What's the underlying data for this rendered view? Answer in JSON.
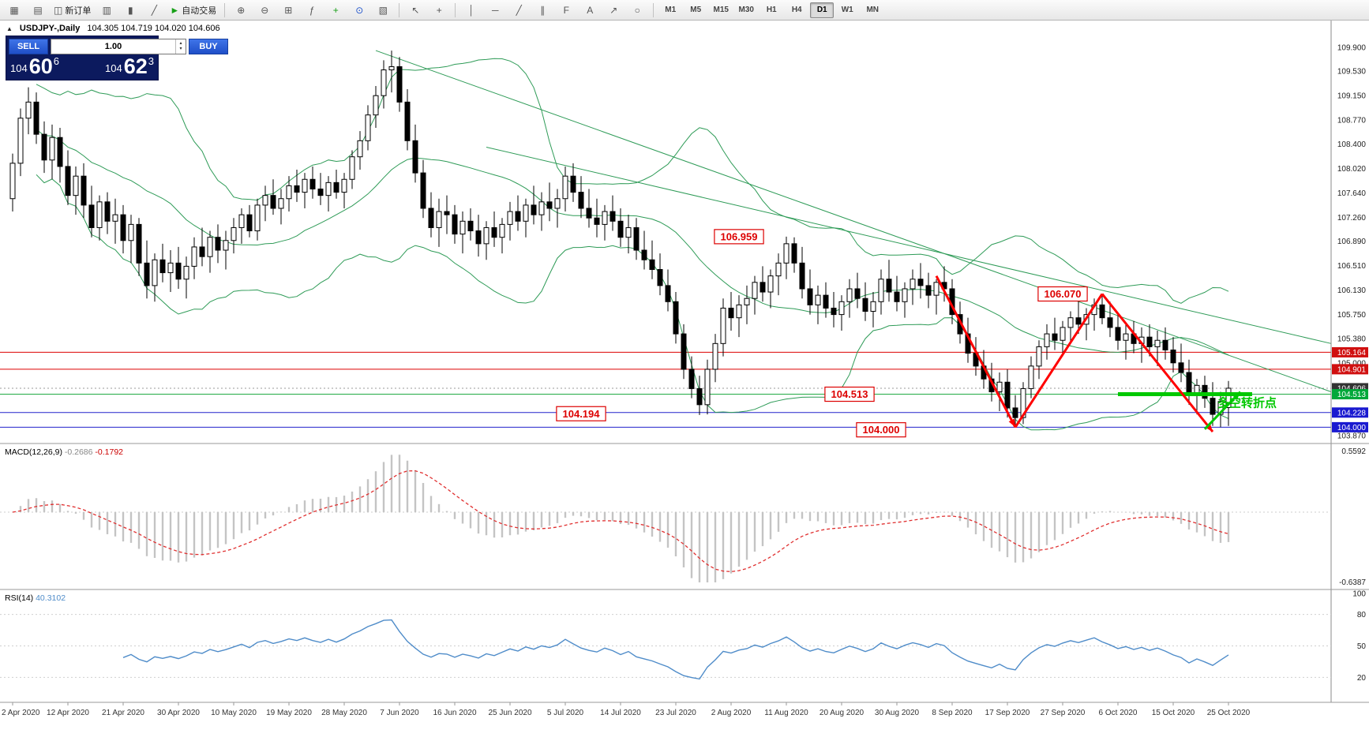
{
  "colors": {
    "band_green": "#2e9b57",
    "trend_green": "#2e9b57",
    "hline_red": "#dd0000",
    "hline_blue": "#2222cc",
    "hline_green": "#22aa44",
    "bid_line_gray": "#999999",
    "support_green": "#00c800",
    "zigzag_red": "#ff0000",
    "arrow_green": "#00c800",
    "pivot_green": "#00c800",
    "macd_hist": "#c4c4c4",
    "macd_signal": "#e03030",
    "rsi_line": "#4f8cc9",
    "badge_red": "#d01010",
    "badge_green": "#00a83a",
    "badge_blue": "#1a1ad0",
    "badge_dark": "#333333"
  },
  "toolbar": {
    "groups": [
      {
        "items": [
          {
            "name": "new-chart-icon",
            "glyph": "▦"
          },
          {
            "name": "profiles-icon",
            "glyph": "▤"
          },
          {
            "name": "new-order-button",
            "glyph": "◫",
            "label": "新订单"
          },
          {
            "name": "chart-bars-icon",
            "glyph": "▥"
          },
          {
            "name": "chart-candles-icon",
            "glyph": "▮"
          },
          {
            "name": "chart-line-icon",
            "glyph": "╱"
          },
          {
            "name": "autotrading-button",
            "glyph": "►",
            "glyph_color": "#18a018",
            "label": "自动交易"
          }
        ]
      },
      {
        "items": [
          {
            "name": "zoom-in-icon",
            "glyph": "⊕"
          },
          {
            "name": "zoom-out-icon",
            "glyph": "⊖"
          },
          {
            "name": "tile-windows-icon",
            "glyph": "⊞"
          },
          {
            "name": "indicators-icon",
            "glyph": "ƒ"
          },
          {
            "name": "add-indicator-icon",
            "glyph": "+",
            "glyph_color": "#18a018"
          },
          {
            "name": "period-icon",
            "glyph": "⊙",
            "glyph_color": "#2255cc"
          },
          {
            "name": "templates-icon",
            "glyph": "▧"
          }
        ]
      },
      {
        "items": [
          {
            "name": "cursor-icon",
            "glyph": "↖"
          },
          {
            "name": "crosshair-icon",
            "glyph": "+"
          }
        ]
      },
      {
        "items": [
          {
            "name": "vertical-line-icon",
            "glyph": "│"
          },
          {
            "name": "horizontal-line-icon",
            "glyph": "─"
          },
          {
            "name": "trendline-icon",
            "glyph": "╱"
          },
          {
            "name": "channel-icon",
            "glyph": "∥"
          },
          {
            "name": "fibonacci-icon",
            "glyph": "F"
          },
          {
            "name": "text-icon",
            "glyph": "A"
          },
          {
            "name": "arrow-label-icon",
            "glyph": "↗"
          },
          {
            "name": "shapes-icon",
            "glyph": "○"
          }
        ]
      }
    ],
    "timeframes": {
      "labels": [
        "M1",
        "M5",
        "M15",
        "M30",
        "H1",
        "H4",
        "D1",
        "W1",
        "MN"
      ],
      "active": "D1"
    }
  },
  "chart": {
    "collapse_icon": "▲",
    "symbol_period": "USDJPY-,Daily",
    "ohlc": "104.305 104.719 104.020 104.606"
  },
  "trade_panel": {
    "sell_label": "SELL",
    "buy_label": "BUY",
    "volume": "1.00",
    "bid": {
      "head": "104",
      "pips": "60",
      "frac": "6"
    },
    "ask": {
      "head": "104",
      "pips": "62",
      "frac": "3"
    }
  },
  "macd": {
    "name": "MACD(12,26,9)",
    "value_main": "-0.2686",
    "value_signal": "-0.1792",
    "scale_max": "0.5592",
    "scale_min": "-0.6387",
    "params": {
      "fast": 12,
      "slow": 26,
      "signal": 9
    }
  },
  "rsi": {
    "name": "RSI(14)",
    "value": "40.3102",
    "period": 14,
    "scale_labels": [
      "100",
      "80",
      "50",
      "20"
    ],
    "levels": [
      80,
      50,
      20
    ]
  },
  "chart_data": {
    "type": "candlestick",
    "symbol": "USDJPY-",
    "timeframe": "Daily",
    "price_axis": {
      "top_price": 109.9,
      "bottom_price": 103.87,
      "ticks": [
        "109.900",
        "109.530",
        "109.150",
        "108.770",
        "108.400",
        "108.020",
        "107.640",
        "107.260",
        "106.890",
        "106.510",
        "106.130",
        "105.750",
        "105.380",
        "105.000",
        "103.870"
      ]
    },
    "badges": [
      {
        "text": "105.164",
        "price": 105.164,
        "bg": "badge_red"
      },
      {
        "text": "104.901",
        "price": 104.901,
        "bg": "badge_red"
      },
      {
        "text": "104.606",
        "price": 104.606,
        "bg": "badge_dark"
      },
      {
        "text": "104.513",
        "price": 104.513,
        "bg": "badge_green"
      },
      {
        "text": "104.228",
        "price": 104.228,
        "bg": "badge_blue"
      },
      {
        "text": "104.000",
        "price": 104.0,
        "bg": "badge_blue"
      }
    ],
    "hlines": [
      {
        "price": 105.164,
        "color": "hline_red",
        "dash": null
      },
      {
        "price": 104.901,
        "color": "hline_red",
        "dash": null
      },
      {
        "price": 104.606,
        "color": "bid_line_gray",
        "dash": "2,3"
      },
      {
        "price": 104.513,
        "color": "hline_green",
        "dash": null
      },
      {
        "price": 104.228,
        "color": "hline_blue",
        "dash": null
      },
      {
        "price": 104.0,
        "color": "hline_blue",
        "dash": null
      }
    ],
    "trendlines": [
      {
        "from": [
          46,
          109.85
        ],
        "to": [
          167,
          104.55
        ]
      },
      {
        "from": [
          60,
          108.35
        ],
        "to": [
          167,
          105.3
        ]
      }
    ],
    "zigzag": {
      "points": [
        [
          117,
          106.35
        ],
        [
          127,
          104.0
        ],
        [
          138,
          106.07
        ],
        [
          152,
          103.93
        ]
      ],
      "arrow_segments": [
        0,
        2
      ]
    },
    "support_segment": {
      "price": 104.513,
      "from_idx": 140,
      "to_idx": 157
    },
    "up_arrow": {
      "from": [
        151,
        103.97
      ],
      "to": [
        155.5,
        104.55
      ]
    },
    "pivot_label": {
      "text": "多空转折点",
      "idx": 151,
      "price": 104.32
    },
    "annotations": [
      {
        "text": "106.959",
        "idx": 92,
        "price": 106.96
      },
      {
        "text": "106.070",
        "idx": 133,
        "price": 106.07
      },
      {
        "text": "104.513",
        "idx": 106,
        "price": 104.513
      },
      {
        "text": "104.194",
        "idx": 72,
        "price": 104.21
      },
      {
        "text": "104.000",
        "idx": 110,
        "price": 103.96
      }
    ],
    "indicators": {
      "bollinger": {
        "period": 20,
        "deviation": 2
      }
    },
    "date_labels": [
      "2 Apr 2020",
      "12 Apr 2020",
      "21 Apr 2020",
      "30 Apr 2020",
      "10 May 2020",
      "19 May 2020",
      "28 May 2020",
      "7 Jun 2020",
      "16 Jun 2020",
      "25 Jun 2020",
      "5 Jul 2020",
      "14 Jul 2020",
      "23 Jul 2020",
      "2 Aug 2020",
      "11 Aug 2020",
      "20 Aug 2020",
      "30 Aug 2020",
      "8 Sep 2020",
      "17 Sep 2020",
      "27 Sep 2020",
      "6 Oct 2020",
      "15 Oct 2020",
      "25 Oct 2020"
    ],
    "candles": [
      [
        107.55,
        108.25,
        107.35,
        108.1
      ],
      [
        108.1,
        108.95,
        107.9,
        108.8
      ],
      [
        108.8,
        109.28,
        108.55,
        109.05
      ],
      [
        109.05,
        109.2,
        108.4,
        108.55
      ],
      [
        108.55,
        108.75,
        107.95,
        108.15
      ],
      [
        108.15,
        108.7,
        107.85,
        108.5
      ],
      [
        108.5,
        108.65,
        107.8,
        108.05
      ],
      [
        108.05,
        108.3,
        107.45,
        107.6
      ],
      [
        107.6,
        108.05,
        107.3,
        107.9
      ],
      [
        107.9,
        108.1,
        107.25,
        107.45
      ],
      [
        107.45,
        107.75,
        106.95,
        107.1
      ],
      [
        107.1,
        107.6,
        106.9,
        107.5
      ],
      [
        107.5,
        107.65,
        107.0,
        107.2
      ],
      [
        107.2,
        107.55,
        106.85,
        107.3
      ],
      [
        107.3,
        107.45,
        106.7,
        106.9
      ],
      [
        106.9,
        107.3,
        106.55,
        107.15
      ],
      [
        107.15,
        107.25,
        106.35,
        106.55
      ],
      [
        106.55,
        106.9,
        106.0,
        106.2
      ],
      [
        106.2,
        106.7,
        105.95,
        106.6
      ],
      [
        106.6,
        106.85,
        106.25,
        106.4
      ],
      [
        106.4,
        106.75,
        106.1,
        106.55
      ],
      [
        106.55,
        106.8,
        106.15,
        106.3
      ],
      [
        106.3,
        106.65,
        106.0,
        106.5
      ],
      [
        106.5,
        106.95,
        106.3,
        106.8
      ],
      [
        106.8,
        107.1,
        106.5,
        106.65
      ],
      [
        106.65,
        107.05,
        106.4,
        106.95
      ],
      [
        106.95,
        107.15,
        106.55,
        106.75
      ],
      [
        106.75,
        107.05,
        106.45,
        106.9
      ],
      [
        106.9,
        107.25,
        106.7,
        107.1
      ],
      [
        107.1,
        107.4,
        106.85,
        107.3
      ],
      [
        107.3,
        107.45,
        106.95,
        107.05
      ],
      [
        107.05,
        107.55,
        106.9,
        107.45
      ],
      [
        107.45,
        107.75,
        107.2,
        107.6
      ],
      [
        107.6,
        107.85,
        107.3,
        107.4
      ],
      [
        107.4,
        107.7,
        107.15,
        107.55
      ],
      [
        107.55,
        107.9,
        107.35,
        107.75
      ],
      [
        107.75,
        108.0,
        107.5,
        107.65
      ],
      [
        107.65,
        107.95,
        107.4,
        107.85
      ],
      [
        107.85,
        108.05,
        107.55,
        107.7
      ],
      [
        107.7,
        107.95,
        107.45,
        107.6
      ],
      [
        107.6,
        107.9,
        107.35,
        107.8
      ],
      [
        107.8,
        108.0,
        107.55,
        107.65
      ],
      [
        107.65,
        107.95,
        107.4,
        107.85
      ],
      [
        107.85,
        108.3,
        107.7,
        108.2
      ],
      [
        108.2,
        108.6,
        108.0,
        108.45
      ],
      [
        108.45,
        109.0,
        108.3,
        108.85
      ],
      [
        108.85,
        109.3,
        108.65,
        109.15
      ],
      [
        109.15,
        109.7,
        108.95,
        109.55
      ],
      [
        109.55,
        109.85,
        109.2,
        109.6
      ],
      [
        109.6,
        109.75,
        108.9,
        109.05
      ],
      [
        109.05,
        109.25,
        108.3,
        108.45
      ],
      [
        108.45,
        108.7,
        107.8,
        107.95
      ],
      [
        107.95,
        108.15,
        107.25,
        107.4
      ],
      [
        107.4,
        107.65,
        106.95,
        107.1
      ],
      [
        107.1,
        107.55,
        106.8,
        107.35
      ],
      [
        107.35,
        107.6,
        107.0,
        107.3
      ],
      [
        107.3,
        107.45,
        106.85,
        107.0
      ],
      [
        107.0,
        107.35,
        106.7,
        107.2
      ],
      [
        107.2,
        107.4,
        106.9,
        107.05
      ],
      [
        107.05,
        107.3,
        106.65,
        106.85
      ],
      [
        106.85,
        107.2,
        106.6,
        107.1
      ],
      [
        107.1,
        107.35,
        106.8,
        106.95
      ],
      [
        106.95,
        107.25,
        106.7,
        107.15
      ],
      [
        107.15,
        107.5,
        106.9,
        107.35
      ],
      [
        107.35,
        107.6,
        107.05,
        107.2
      ],
      [
        107.2,
        107.55,
        106.95,
        107.45
      ],
      [
        107.45,
        107.75,
        107.15,
        107.3
      ],
      [
        107.3,
        107.65,
        107.05,
        107.5
      ],
      [
        107.5,
        107.8,
        107.2,
        107.4
      ],
      [
        107.4,
        107.7,
        107.1,
        107.55
      ],
      [
        107.55,
        108.05,
        107.35,
        107.9
      ],
      [
        107.9,
        108.1,
        107.5,
        107.65
      ],
      [
        107.65,
        107.9,
        107.25,
        107.4
      ],
      [
        107.4,
        107.7,
        107.1,
        107.25
      ],
      [
        107.25,
        107.55,
        106.95,
        107.15
      ],
      [
        107.15,
        107.45,
        106.9,
        107.35
      ],
      [
        107.35,
        107.6,
        107.05,
        107.2
      ],
      [
        107.2,
        107.4,
        106.8,
        106.95
      ],
      [
        106.95,
        107.3,
        106.7,
        107.1
      ],
      [
        107.1,
        107.25,
        106.6,
        106.75
      ],
      [
        106.75,
        107.05,
        106.45,
        106.6
      ],
      [
        106.6,
        106.9,
        106.3,
        106.45
      ],
      [
        106.45,
        106.7,
        106.05,
        106.2
      ],
      [
        106.2,
        106.45,
        105.8,
        105.95
      ],
      [
        105.95,
        106.1,
        105.3,
        105.45
      ],
      [
        105.45,
        105.6,
        104.75,
        104.9
      ],
      [
        104.9,
        105.1,
        104.45,
        104.6
      ],
      [
        104.6,
        104.8,
        104.19,
        104.35
      ],
      [
        104.35,
        105.05,
        104.2,
        104.9
      ],
      [
        104.9,
        105.45,
        104.7,
        105.3
      ],
      [
        105.3,
        106.0,
        105.1,
        105.85
      ],
      [
        105.85,
        106.1,
        105.5,
        105.7
      ],
      [
        105.7,
        106.05,
        105.4,
        105.9
      ],
      [
        105.9,
        106.2,
        105.6,
        106.0
      ],
      [
        106.0,
        106.35,
        105.75,
        106.25
      ],
      [
        106.25,
        106.5,
        105.95,
        106.1
      ],
      [
        106.1,
        106.45,
        105.85,
        106.35
      ],
      [
        106.35,
        106.7,
        106.05,
        106.55
      ],
      [
        106.55,
        106.96,
        106.3,
        106.85
      ],
      [
        106.85,
        106.95,
        106.4,
        106.55
      ],
      [
        106.55,
        106.8,
        106.0,
        106.15
      ],
      [
        106.15,
        106.45,
        105.75,
        105.9
      ],
      [
        105.9,
        106.2,
        105.6,
        106.05
      ],
      [
        106.05,
        106.25,
        105.7,
        105.85
      ],
      [
        105.85,
        106.1,
        105.55,
        105.75
      ],
      [
        105.75,
        106.05,
        105.5,
        105.95
      ],
      [
        105.95,
        106.3,
        105.7,
        106.15
      ],
      [
        106.15,
        106.4,
        105.85,
        106.0
      ],
      [
        106.0,
        106.25,
        105.65,
        105.8
      ],
      [
        105.8,
        106.1,
        105.55,
        105.95
      ],
      [
        105.95,
        106.45,
        105.75,
        106.3
      ],
      [
        106.3,
        106.6,
        105.95,
        106.1
      ],
      [
        106.1,
        106.35,
        105.8,
        105.95
      ],
      [
        105.95,
        106.25,
        105.7,
        106.15
      ],
      [
        106.15,
        106.45,
        105.9,
        106.3
      ],
      [
        106.3,
        106.55,
        106.0,
        106.2
      ],
      [
        106.2,
        106.4,
        105.85,
        106.05
      ],
      [
        106.05,
        106.3,
        105.75,
        106.25
      ],
      [
        106.25,
        106.5,
        105.95,
        106.15
      ],
      [
        106.15,
        106.3,
        105.6,
        105.75
      ],
      [
        105.75,
        105.95,
        105.3,
        105.45
      ],
      [
        105.45,
        105.7,
        105.0,
        105.15
      ],
      [
        105.15,
        105.4,
        104.8,
        104.95
      ],
      [
        104.95,
        105.2,
        104.6,
        104.75
      ],
      [
        104.75,
        105.0,
        104.4,
        104.55
      ],
      [
        104.55,
        104.85,
        104.25,
        104.7
      ],
      [
        104.7,
        104.9,
        104.15,
        104.3
      ],
      [
        104.3,
        104.5,
        104.0,
        104.15
      ],
      [
        104.15,
        104.7,
        104.05,
        104.6
      ],
      [
        104.6,
        105.1,
        104.45,
        104.95
      ],
      [
        104.95,
        105.35,
        104.75,
        105.25
      ],
      [
        105.25,
        105.6,
        105.05,
        105.45
      ],
      [
        105.45,
        105.7,
        105.2,
        105.35
      ],
      [
        105.35,
        105.65,
        105.1,
        105.55
      ],
      [
        105.55,
        105.8,
        105.3,
        105.7
      ],
      [
        105.7,
        105.95,
        105.45,
        105.6
      ],
      [
        105.6,
        105.85,
        105.35,
        105.75
      ],
      [
        105.75,
        106.0,
        105.5,
        105.9
      ],
      [
        105.9,
        106.07,
        105.6,
        105.7
      ],
      [
        105.7,
        105.95,
        105.4,
        105.55
      ],
      [
        105.55,
        105.75,
        105.2,
        105.35
      ],
      [
        105.35,
        105.6,
        105.05,
        105.45
      ],
      [
        105.45,
        105.65,
        105.15,
        105.3
      ],
      [
        105.3,
        105.55,
        105.0,
        105.4
      ],
      [
        105.4,
        105.6,
        105.1,
        105.25
      ],
      [
        105.25,
        105.5,
        104.95,
        105.35
      ],
      [
        105.35,
        105.55,
        105.05,
        105.2
      ],
      [
        105.2,
        105.4,
        104.85,
        105.0
      ],
      [
        105.0,
        105.3,
        104.7,
        104.85
      ],
      [
        104.85,
        105.05,
        104.35,
        104.5
      ],
      [
        104.5,
        104.75,
        104.2,
        104.65
      ],
      [
        104.65,
        104.8,
        104.3,
        104.45
      ],
      [
        104.45,
        104.7,
        104.02,
        104.2
      ],
      [
        104.2,
        104.55,
        104.0,
        104.4
      ],
      [
        104.305,
        104.719,
        104.02,
        104.606
      ]
    ]
  }
}
